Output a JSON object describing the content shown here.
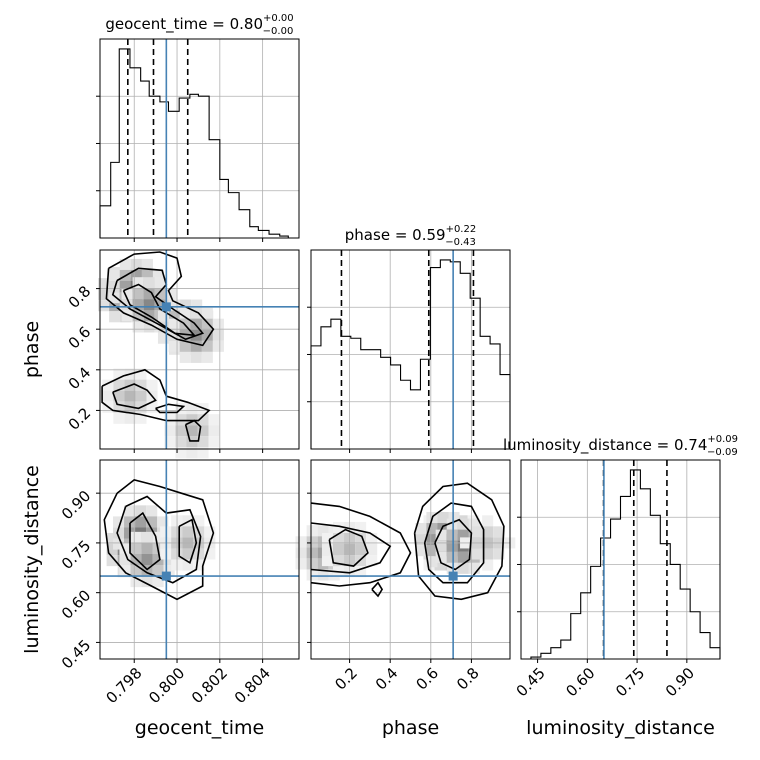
{
  "chart_data": {
    "type": "corner",
    "parameters": [
      {
        "name": "geocent_time",
        "range": [
          0.7964,
          0.8057
        ],
        "ticks": [
          "0.798",
          "0.800",
          "0.802",
          "0.804"
        ],
        "tick_values": [
          0.798,
          0.8,
          0.802,
          0.804
        ],
        "title": {
          "text": "geocent_time = 0.80",
          "plus": "+0.00",
          "minus": "−0.00"
        },
        "quantiles": [
          0.7977,
          0.7989,
          0.8005
        ],
        "truth": 0.7995,
        "hist_edges": [
          0.7964,
          0.7969,
          0.7973,
          0.7978,
          0.7983,
          0.7987,
          0.7992,
          0.7996,
          0.8001,
          0.8006,
          0.801,
          0.8015,
          0.802,
          0.8024,
          0.8029,
          0.8034,
          0.8038,
          0.8043,
          0.8048,
          0.8052,
          0.8057
        ],
        "hist_counts": [
          0.17,
          0.4,
          1.0,
          0.9,
          0.83,
          0.75,
          0.72,
          0.67,
          0.74,
          0.76,
          0.75,
          0.52,
          0.31,
          0.24,
          0.15,
          0.06,
          0.04,
          0.02,
          0.01,
          0.0
        ]
      },
      {
        "name": "phase",
        "range": [
          0.01,
          0.99
        ],
        "ticks": [
          "0.2",
          "0.4",
          "0.6",
          "0.8"
        ],
        "tick_values": [
          0.2,
          0.4,
          0.6,
          0.8
        ],
        "title": {
          "text": "phase = 0.59",
          "plus": "+0.22",
          "minus": "−0.43"
        },
        "quantiles": [
          0.16,
          0.59,
          0.81
        ],
        "truth": 0.71,
        "hist_edges": [
          0.01,
          0.059,
          0.108,
          0.157,
          0.206,
          0.255,
          0.304,
          0.353,
          0.402,
          0.451,
          0.5,
          0.549,
          0.598,
          0.647,
          0.696,
          0.745,
          0.794,
          0.843,
          0.892,
          0.941,
          0.99
        ],
        "hist_counts": [
          0.54,
          0.64,
          0.68,
          0.59,
          0.58,
          0.52,
          0.52,
          0.48,
          0.44,
          0.36,
          0.31,
          0.47,
          0.95,
          0.99,
          0.98,
          0.92,
          0.79,
          0.59,
          0.55,
          0.39
        ]
      },
      {
        "name": "luminosity_distance",
        "range": [
          0.4,
          1.0
        ],
        "ticks": [
          "0.45",
          "0.60",
          "0.75",
          "0.90"
        ],
        "tick_values": [
          0.45,
          0.6,
          0.75,
          0.9
        ],
        "title": {
          "text": "luminosity_distance = 0.74",
          "plus": "+0.09",
          "minus": "−0.09"
        },
        "quantiles": [
          0.649,
          0.74,
          0.84
        ],
        "truth": 0.65,
        "hist_edges": [
          0.4,
          0.43,
          0.46,
          0.49,
          0.52,
          0.55,
          0.58,
          0.61,
          0.64,
          0.67,
          0.7,
          0.73,
          0.76,
          0.79,
          0.82,
          0.85,
          0.88,
          0.91,
          0.94,
          0.97,
          1.0
        ],
        "hist_counts": [
          0.0,
          0.01,
          0.03,
          0.06,
          0.1,
          0.24,
          0.35,
          0.49,
          0.64,
          0.74,
          0.86,
          1.0,
          0.9,
          0.76,
          0.61,
          0.5,
          0.37,
          0.25,
          0.14,
          0.06
        ]
      }
    ],
    "contours_2d": [
      {
        "x": "geocent_time",
        "y": "phase",
        "levels": [
          [
            [
              0.7968,
              0.9
            ],
            [
              0.798,
              0.97
            ],
            [
              0.7992,
              0.98
            ],
            [
              0.8,
              0.95
            ],
            [
              0.8002,
              0.86
            ],
            [
              0.7996,
              0.79
            ],
            [
              0.7998,
              0.74
            ],
            [
              0.801,
              0.68
            ],
            [
              0.8017,
              0.6
            ],
            [
              0.8012,
              0.52
            ],
            [
              0.8,
              0.55
            ],
            [
              0.7988,
              0.62
            ],
            [
              0.7975,
              0.68
            ],
            [
              0.7967,
              0.75
            ],
            [
              0.7968,
              0.9
            ]
          ],
          [
            [
              0.7972,
              0.84
            ],
            [
              0.7982,
              0.9
            ],
            [
              0.7993,
              0.89
            ],
            [
              0.7995,
              0.82
            ],
            [
              0.799,
              0.76
            ],
            [
              0.7998,
              0.7
            ],
            [
              0.8008,
              0.63
            ],
            [
              0.8012,
              0.58
            ],
            [
              0.8004,
              0.55
            ],
            [
              0.7992,
              0.62
            ],
            [
              0.7978,
              0.7
            ],
            [
              0.797,
              0.77
            ],
            [
              0.7972,
              0.84
            ]
          ],
          [
            [
              0.7975,
              0.79
            ],
            [
              0.7982,
              0.82
            ],
            [
              0.7988,
              0.78
            ],
            [
              0.7992,
              0.7
            ],
            [
              0.8003,
              0.63
            ],
            [
              0.8008,
              0.57
            ],
            [
              0.7999,
              0.58
            ],
            [
              0.7988,
              0.66
            ],
            [
              0.7978,
              0.72
            ],
            [
              0.7975,
              0.79
            ]
          ],
          [
            [
              0.7965,
              0.32
            ],
            [
              0.7975,
              0.37
            ],
            [
              0.7985,
              0.4
            ],
            [
              0.7992,
              0.35
            ],
            [
              0.7995,
              0.27
            ],
            [
              0.8005,
              0.24
            ],
            [
              0.8015,
              0.2
            ],
            [
              0.801,
              0.15
            ],
            [
              0.7995,
              0.15
            ],
            [
              0.7983,
              0.18
            ],
            [
              0.797,
              0.2
            ],
            [
              0.7965,
              0.24
            ],
            [
              0.7965,
              0.32
            ]
          ],
          [
            [
              0.797,
              0.29
            ],
            [
              0.798,
              0.33
            ],
            [
              0.7986,
              0.3
            ],
            [
              0.799,
              0.25
            ],
            [
              0.7982,
              0.21
            ],
            [
              0.7972,
              0.23
            ],
            [
              0.797,
              0.29
            ]
          ],
          [
            [
              0.799,
              0.21
            ],
            [
              0.7996,
              0.23
            ],
            [
              0.8003,
              0.22
            ],
            [
              0.8,
              0.19
            ],
            [
              0.7992,
              0.19
            ],
            [
              0.799,
              0.21
            ]
          ],
          [
            [
              0.8004,
              0.13
            ],
            [
              0.8008,
              0.15
            ],
            [
              0.8011,
              0.12
            ],
            [
              0.801,
              0.05
            ],
            [
              0.8006,
              0.05
            ],
            [
              0.8004,
              0.13
            ]
          ]
        ],
        "density": [
          {
            "x": 0.7976,
            "y": 0.77,
            "w": 0.66
          },
          {
            "x": 0.7981,
            "y": 0.81,
            "w": 0.55
          },
          {
            "x": 0.7987,
            "y": 0.72,
            "w": 0.5
          },
          {
            "x": 0.8004,
            "y": 0.61,
            "w": 0.55
          },
          {
            "x": 0.8009,
            "y": 0.57,
            "w": 0.48
          },
          {
            "x": 0.7978,
            "y": 0.27,
            "w": 0.3
          },
          {
            "x": 0.8007,
            "y": 0.1,
            "w": 0.3
          }
        ]
      },
      {
        "x": "geocent_time",
        "y": "luminosity_distance",
        "levels": [
          [
            [
              0.7972,
              0.9
            ],
            [
              0.798,
              0.94
            ],
            [
              0.7992,
              0.92
            ],
            [
              0.8002,
              0.9
            ],
            [
              0.8012,
              0.88
            ],
            [
              0.8017,
              0.78
            ],
            [
              0.8012,
              0.68
            ],
            [
              0.8012,
              0.62
            ],
            [
              0.8,
              0.58
            ],
            [
              0.7988,
              0.62
            ],
            [
              0.7976,
              0.66
            ],
            [
              0.7968,
              0.72
            ],
            [
              0.7966,
              0.82
            ],
            [
              0.7972,
              0.9
            ]
          ],
          [
            [
              0.7976,
              0.86
            ],
            [
              0.7986,
              0.89
            ],
            [
              0.7995,
              0.84
            ],
            [
              0.8006,
              0.85
            ],
            [
              0.8011,
              0.77
            ],
            [
              0.8009,
              0.67
            ],
            [
              0.7998,
              0.63
            ],
            [
              0.7986,
              0.66
            ],
            [
              0.7977,
              0.7
            ],
            [
              0.7972,
              0.78
            ],
            [
              0.7976,
              0.86
            ]
          ],
          [
            [
              0.7978,
              0.81
            ],
            [
              0.7984,
              0.84
            ],
            [
              0.799,
              0.77
            ],
            [
              0.7992,
              0.7
            ],
            [
              0.7986,
              0.67
            ],
            [
              0.7978,
              0.72
            ],
            [
              0.7978,
              0.81
            ]
          ],
          [
            [
              0.8001,
              0.8
            ],
            [
              0.8007,
              0.82
            ],
            [
              0.8009,
              0.75
            ],
            [
              0.8006,
              0.69
            ],
            [
              0.8001,
              0.71
            ],
            [
              0.8001,
              0.8
            ]
          ]
        ],
        "density": [
          {
            "x": 0.798,
            "y": 0.73,
            "w": 0.7
          },
          {
            "x": 0.7983,
            "y": 0.78,
            "w": 0.55
          },
          {
            "x": 0.7986,
            "y": 0.7,
            "w": 0.45
          },
          {
            "x": 0.8005,
            "y": 0.75,
            "w": 0.3
          }
        ]
      },
      {
        "x": "phase",
        "y": "luminosity_distance",
        "levels": [
          [
            [
              0.01,
              0.87
            ],
            [
              0.15,
              0.86
            ],
            [
              0.3,
              0.83
            ],
            [
              0.45,
              0.78
            ],
            [
              0.5,
              0.72
            ],
            [
              0.45,
              0.66
            ],
            [
              0.3,
              0.63
            ],
            [
              0.15,
              0.62
            ],
            [
              0.01,
              0.63
            ]
          ],
          [
            [
              0.01,
              0.81
            ],
            [
              0.15,
              0.8
            ],
            [
              0.3,
              0.78
            ],
            [
              0.4,
              0.74
            ],
            [
              0.35,
              0.69
            ],
            [
              0.2,
              0.66
            ],
            [
              0.01,
              0.67
            ]
          ],
          [
            [
              0.1,
              0.76
            ],
            [
              0.18,
              0.79
            ],
            [
              0.26,
              0.77
            ],
            [
              0.29,
              0.72
            ],
            [
              0.22,
              0.68
            ],
            [
              0.12,
              0.69
            ],
            [
              0.1,
              0.76
            ]
          ],
          [
            [
              0.52,
              0.78
            ],
            [
              0.56,
              0.86
            ],
            [
              0.66,
              0.92
            ],
            [
              0.78,
              0.93
            ],
            [
              0.9,
              0.88
            ],
            [
              0.96,
              0.8
            ],
            [
              0.95,
              0.68
            ],
            [
              0.88,
              0.6
            ],
            [
              0.75,
              0.58
            ],
            [
              0.62,
              0.59
            ],
            [
              0.54,
              0.65
            ],
            [
              0.52,
              0.78
            ]
          ],
          [
            [
              0.57,
              0.75
            ],
            [
              0.61,
              0.83
            ],
            [
              0.7,
              0.87
            ],
            [
              0.8,
              0.86
            ],
            [
              0.86,
              0.79
            ],
            [
              0.86,
              0.69
            ],
            [
              0.78,
              0.63
            ],
            [
              0.66,
              0.63
            ],
            [
              0.59,
              0.67
            ],
            [
              0.57,
              0.75
            ]
          ],
          [
            [
              0.62,
              0.75
            ],
            [
              0.66,
              0.8
            ],
            [
              0.74,
              0.82
            ],
            [
              0.8,
              0.78
            ],
            [
              0.79,
              0.7
            ],
            [
              0.72,
              0.67
            ],
            [
              0.65,
              0.69
            ],
            [
              0.62,
              0.75
            ]
          ],
          [
            [
              0.31,
              0.61
            ],
            [
              0.34,
              0.63
            ],
            [
              0.36,
              0.61
            ],
            [
              0.34,
              0.59
            ],
            [
              0.31,
              0.61
            ]
          ]
        ],
        "density": [
          {
            "x": 0.7,
            "y": 0.75,
            "w": 0.85
          },
          {
            "x": 0.66,
            "y": 0.76,
            "w": 0.6
          },
          {
            "x": 0.76,
            "y": 0.74,
            "w": 0.55
          },
          {
            "x": 0.07,
            "y": 0.72,
            "w": 0.4
          },
          {
            "x": 0.2,
            "y": 0.73,
            "w": 0.3
          },
          {
            "x": 0.88,
            "y": 0.75,
            "w": 0.25
          }
        ]
      }
    ]
  }
}
